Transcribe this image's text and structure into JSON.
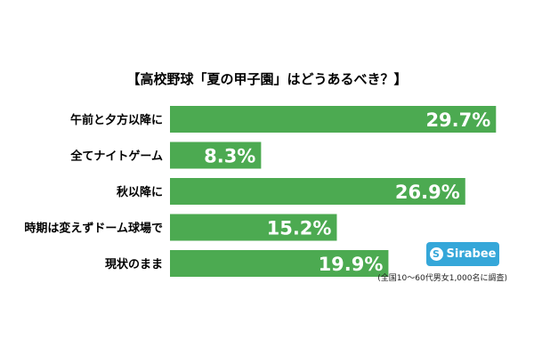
{
  "chart_data": {
    "type": "bar",
    "orientation": "horizontal",
    "title": "【高校野球「夏の甲子園」はどうあるべき？】",
    "categories": [
      "午前と夕方以降に",
      "全てナイトゲーム",
      "秋以降に",
      "時期は変えずドーム球場で",
      "現状のまま"
    ],
    "values": [
      29.7,
      8.3,
      26.9,
      15.2,
      19.9
    ],
    "value_labels": [
      "29.7%",
      "8.3%",
      "26.9%",
      "15.2%",
      "19.9%"
    ],
    "xlim": [
      0,
      30
    ],
    "bar_color": "#4caa51",
    "label_color": "#ffffff"
  },
  "logo": {
    "text": "Sirabee",
    "mark": "S"
  },
  "note": "(全国10～60代男女1,000名に調査)"
}
